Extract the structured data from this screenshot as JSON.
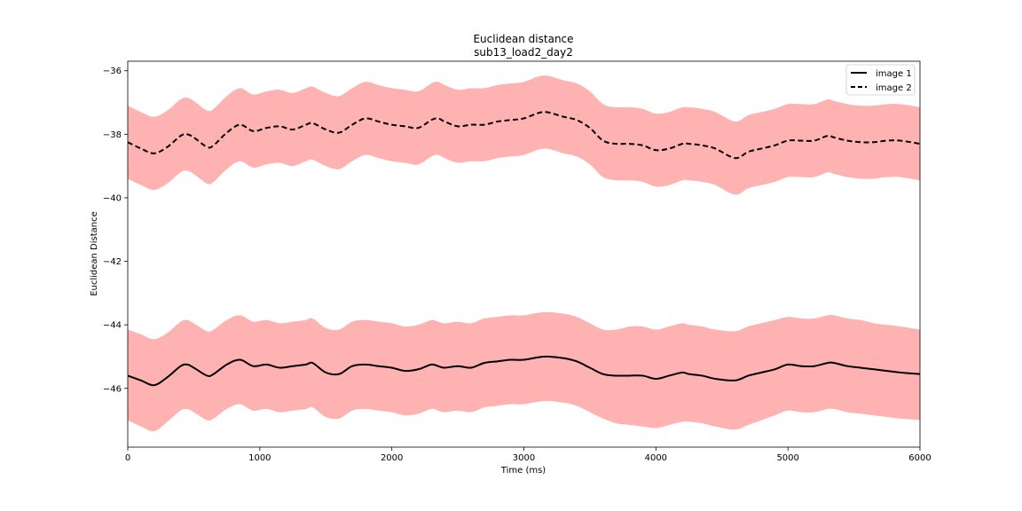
{
  "chart_data": {
    "type": "line",
    "title": "Euclidean distance",
    "subtitle": "sub13_load2_day2",
    "xlabel": "Time (ms)",
    "ylabel": "Euclidean Distance",
    "xlim": [
      0,
      6000
    ],
    "ylim": [
      -47.85,
      -35.7
    ],
    "xticks": [
      0,
      1000,
      2000,
      3000,
      4000,
      5000,
      6000
    ],
    "xtick_labels": [
      "0",
      "1000",
      "2000",
      "3000",
      "4000",
      "5000",
      "6000"
    ],
    "yticks": [
      -36,
      -38,
      -40,
      -42,
      -44,
      -46
    ],
    "ytick_labels": [
      "−36",
      "−38",
      "−40",
      "−42",
      "−44",
      "−46"
    ],
    "grid": false,
    "legend_position": "upper right",
    "band_color": "#ff0000",
    "band_opacity": 0.3,
    "x": [
      0,
      100,
      200,
      300,
      400,
      450,
      500,
      600,
      650,
      750,
      850,
      950,
      1050,
      1150,
      1250,
      1350,
      1400,
      1500,
      1600,
      1700,
      1800,
      1900,
      2000,
      2100,
      2200,
      2300,
      2350,
      2400,
      2500,
      2600,
      2700,
      2800,
      2900,
      3000,
      3150,
      3300,
      3400,
      3500,
      3600,
      3700,
      3800,
      3900,
      4000,
      4100,
      4200,
      4250,
      4350,
      4450,
      4600,
      4700,
      4800,
      4900,
      5000,
      5100,
      5200,
      5300,
      5350,
      5450,
      5550,
      5650,
      5750,
      5850,
      6000
    ],
    "series": [
      {
        "name": "image 1",
        "line_style": "solid",
        "color": "#000000",
        "mean": [
          -45.6,
          -45.75,
          -45.9,
          -45.65,
          -45.3,
          -45.25,
          -45.35,
          -45.6,
          -45.55,
          -45.25,
          -45.1,
          -45.3,
          -45.25,
          -45.35,
          -45.3,
          -45.25,
          -45.2,
          -45.5,
          -45.55,
          -45.3,
          -45.25,
          -45.3,
          -45.35,
          -45.45,
          -45.4,
          -45.25,
          -45.3,
          -45.35,
          -45.3,
          -45.35,
          -45.2,
          -45.15,
          -45.1,
          -45.1,
          -45.0,
          -45.05,
          -45.15,
          -45.35,
          -45.55,
          -45.6,
          -45.6,
          -45.6,
          -45.7,
          -45.6,
          -45.5,
          -45.55,
          -45.6,
          -45.7,
          -45.75,
          -45.6,
          -45.5,
          -45.4,
          -45.25,
          -45.3,
          -45.3,
          -45.2,
          -45.2,
          -45.3,
          -45.35,
          -45.4,
          -45.45,
          -45.5,
          -45.55
        ],
        "lower": [
          -47.0,
          -47.2,
          -47.35,
          -47.05,
          -46.7,
          -46.65,
          -46.75,
          -47.0,
          -46.95,
          -46.65,
          -46.5,
          -46.7,
          -46.65,
          -46.75,
          -46.7,
          -46.65,
          -46.6,
          -46.9,
          -46.95,
          -46.7,
          -46.65,
          -46.7,
          -46.75,
          -46.85,
          -46.8,
          -46.65,
          -46.7,
          -46.75,
          -46.7,
          -46.75,
          -46.6,
          -46.55,
          -46.5,
          -46.5,
          -46.4,
          -46.45,
          -46.55,
          -46.75,
          -46.95,
          -47.1,
          -47.15,
          -47.2,
          -47.25,
          -47.15,
          -47.05,
          -47.05,
          -47.1,
          -47.2,
          -47.3,
          -47.15,
          -47.0,
          -46.85,
          -46.7,
          -46.75,
          -46.75,
          -46.65,
          -46.65,
          -46.75,
          -46.8,
          -46.85,
          -46.9,
          -46.95,
          -47.0
        ],
        "upper": [
          -44.15,
          -44.3,
          -44.45,
          -44.25,
          -43.9,
          -43.85,
          -43.95,
          -44.2,
          -44.15,
          -43.85,
          -43.7,
          -43.9,
          -43.85,
          -43.95,
          -43.9,
          -43.85,
          -43.8,
          -44.1,
          -44.15,
          -43.9,
          -43.85,
          -43.9,
          -43.95,
          -44.05,
          -44.0,
          -43.85,
          -43.9,
          -43.95,
          -43.9,
          -43.95,
          -43.8,
          -43.75,
          -43.7,
          -43.7,
          -43.6,
          -43.65,
          -43.75,
          -43.95,
          -44.15,
          -44.15,
          -44.05,
          -44.05,
          -44.15,
          -44.05,
          -43.95,
          -44.0,
          -44.05,
          -44.15,
          -44.2,
          -44.05,
          -43.95,
          -43.85,
          -43.75,
          -43.8,
          -43.8,
          -43.7,
          -43.7,
          -43.8,
          -43.85,
          -43.95,
          -44.0,
          -44.05,
          -44.15
        ]
      },
      {
        "name": "image 2",
        "line_style": "dashed",
        "color": "#000000",
        "mean": [
          -38.25,
          -38.45,
          -38.6,
          -38.4,
          -38.05,
          -38.0,
          -38.1,
          -38.4,
          -38.35,
          -37.95,
          -37.7,
          -37.9,
          -37.8,
          -37.75,
          -37.85,
          -37.7,
          -37.65,
          -37.85,
          -37.95,
          -37.7,
          -37.5,
          -37.6,
          -37.7,
          -37.75,
          -37.8,
          -37.55,
          -37.5,
          -37.6,
          -37.75,
          -37.7,
          -37.7,
          -37.6,
          -37.55,
          -37.5,
          -37.3,
          -37.45,
          -37.55,
          -37.8,
          -38.2,
          -38.3,
          -38.3,
          -38.35,
          -38.5,
          -38.45,
          -38.3,
          -38.3,
          -38.35,
          -38.45,
          -38.75,
          -38.55,
          -38.45,
          -38.35,
          -38.2,
          -38.2,
          -38.2,
          -38.05,
          -38.1,
          -38.2,
          -38.25,
          -38.25,
          -38.2,
          -38.2,
          -38.3
        ],
        "lower": [
          -39.4,
          -39.6,
          -39.75,
          -39.55,
          -39.2,
          -39.15,
          -39.25,
          -39.55,
          -39.5,
          -39.1,
          -38.85,
          -39.05,
          -38.95,
          -38.9,
          -39.0,
          -38.85,
          -38.8,
          -39.0,
          -39.1,
          -38.85,
          -38.65,
          -38.75,
          -38.85,
          -38.9,
          -38.95,
          -38.7,
          -38.65,
          -38.75,
          -38.9,
          -38.85,
          -38.85,
          -38.75,
          -38.7,
          -38.65,
          -38.45,
          -38.6,
          -38.7,
          -38.95,
          -39.35,
          -39.45,
          -39.45,
          -39.5,
          -39.65,
          -39.6,
          -39.45,
          -39.45,
          -39.5,
          -39.6,
          -39.9,
          -39.7,
          -39.6,
          -39.5,
          -39.35,
          -39.35,
          -39.35,
          -39.2,
          -39.25,
          -39.35,
          -39.4,
          -39.4,
          -39.35,
          -39.35,
          -39.45
        ],
        "upper": [
          -37.1,
          -37.3,
          -37.45,
          -37.25,
          -36.9,
          -36.85,
          -36.95,
          -37.25,
          -37.2,
          -36.8,
          -36.55,
          -36.75,
          -36.65,
          -36.6,
          -36.7,
          -36.55,
          -36.5,
          -36.7,
          -36.8,
          -36.55,
          -36.35,
          -36.45,
          -36.55,
          -36.6,
          -36.65,
          -36.4,
          -36.35,
          -36.45,
          -36.6,
          -36.55,
          -36.55,
          -36.45,
          -36.4,
          -36.35,
          -36.15,
          -36.3,
          -36.4,
          -36.65,
          -37.05,
          -37.15,
          -37.15,
          -37.2,
          -37.35,
          -37.3,
          -37.15,
          -37.15,
          -37.2,
          -37.3,
          -37.6,
          -37.4,
          -37.3,
          -37.2,
          -37.05,
          -37.05,
          -37.05,
          -36.9,
          -36.95,
          -37.05,
          -37.1,
          -37.1,
          -37.05,
          -37.05,
          -37.15
        ]
      }
    ]
  }
}
